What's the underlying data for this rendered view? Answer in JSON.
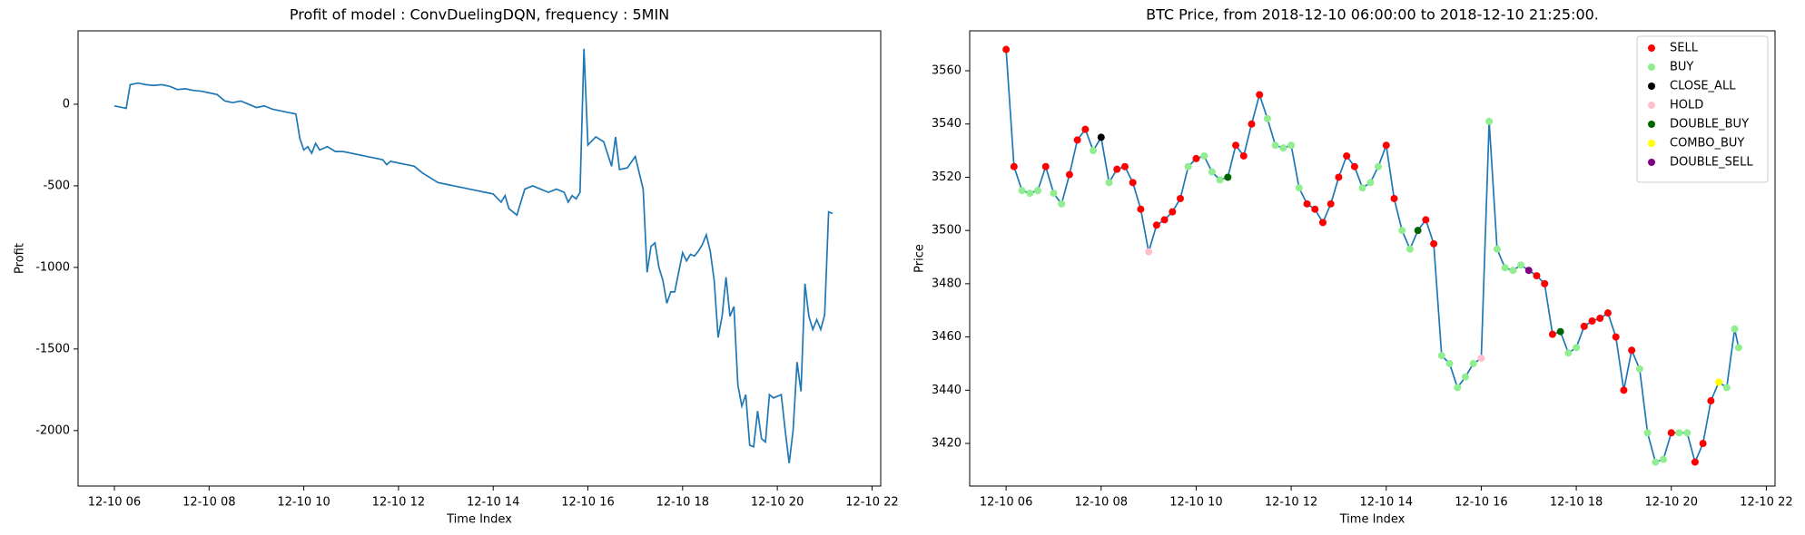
{
  "chart_data": [
    {
      "type": "line",
      "title": "Profit of model : ConvDuelingDQN, frequency : 5MIN",
      "x_label": "Time Index",
      "y_label": "Profit",
      "color": "#1f77b4",
      "x": [
        "2018-12-10 06:00",
        "2018-12-10 06:10",
        "2018-12-10 06:15",
        "2018-12-10 06:20",
        "2018-12-10 06:30",
        "2018-12-10 06:40",
        "2018-12-10 06:50",
        "2018-12-10 07:00",
        "2018-12-10 07:10",
        "2018-12-10 07:20",
        "2018-12-10 07:30",
        "2018-12-10 07:40",
        "2018-12-10 07:50",
        "2018-12-10 08:00",
        "2018-12-10 08:10",
        "2018-12-10 08:20",
        "2018-12-10 08:30",
        "2018-12-10 08:40",
        "2018-12-10 08:50",
        "2018-12-10 09:00",
        "2018-12-10 09:10",
        "2018-12-10 09:20",
        "2018-12-10 09:30",
        "2018-12-10 09:40",
        "2018-12-10 09:50",
        "2018-12-10 09:55",
        "2018-12-10 10:00",
        "2018-12-10 10:05",
        "2018-12-10 10:10",
        "2018-12-10 10:15",
        "2018-12-10 10:20",
        "2018-12-10 10:30",
        "2018-12-10 10:40",
        "2018-12-10 10:50",
        "2018-12-10 11:00",
        "2018-12-10 11:10",
        "2018-12-10 11:20",
        "2018-12-10 11:30",
        "2018-12-10 11:40",
        "2018-12-10 11:45",
        "2018-12-10 11:50",
        "2018-12-10 12:00",
        "2018-12-10 12:10",
        "2018-12-10 12:20",
        "2018-12-10 12:30",
        "2018-12-10 12:40",
        "2018-12-10 12:50",
        "2018-12-10 13:00",
        "2018-12-10 13:10",
        "2018-12-10 13:20",
        "2018-12-10 13:30",
        "2018-12-10 13:40",
        "2018-12-10 13:50",
        "2018-12-10 14:00",
        "2018-12-10 14:10",
        "2018-12-10 14:15",
        "2018-12-10 14:20",
        "2018-12-10 14:30",
        "2018-12-10 14:40",
        "2018-12-10 14:50",
        "2018-12-10 15:00",
        "2018-12-10 15:10",
        "2018-12-10 15:20",
        "2018-12-10 15:30",
        "2018-12-10 15:35",
        "2018-12-10 15:40",
        "2018-12-10 15:45",
        "2018-12-10 15:50",
        "2018-12-10 15:55",
        "2018-12-10 16:00",
        "2018-12-10 16:10",
        "2018-12-10 16:20",
        "2018-12-10 16:30",
        "2018-12-10 16:35",
        "2018-12-10 16:40",
        "2018-12-10 16:50",
        "2018-12-10 17:00",
        "2018-12-10 17:05",
        "2018-12-10 17:10",
        "2018-12-10 17:15",
        "2018-12-10 17:20",
        "2018-12-10 17:25",
        "2018-12-10 17:30",
        "2018-12-10 17:35",
        "2018-12-10 17:40",
        "2018-12-10 17:45",
        "2018-12-10 17:50",
        "2018-12-10 18:00",
        "2018-12-10 18:05",
        "2018-12-10 18:10",
        "2018-12-10 18:15",
        "2018-12-10 18:20",
        "2018-12-10 18:25",
        "2018-12-10 18:30",
        "2018-12-10 18:35",
        "2018-12-10 18:40",
        "2018-12-10 18:45",
        "2018-12-10 18:50",
        "2018-12-10 18:55",
        "2018-12-10 19:00",
        "2018-12-10 19:05",
        "2018-12-10 19:10",
        "2018-12-10 19:15",
        "2018-12-10 19:20",
        "2018-12-10 19:25",
        "2018-12-10 19:30",
        "2018-12-10 19:35",
        "2018-12-10 19:40",
        "2018-12-10 19:45",
        "2018-12-10 19:50",
        "2018-12-10 19:55",
        "2018-12-10 20:00",
        "2018-12-10 20:05",
        "2018-12-10 20:10",
        "2018-12-10 20:15",
        "2018-12-10 20:20",
        "2018-12-10 20:25",
        "2018-12-10 20:30",
        "2018-12-10 20:35",
        "2018-12-10 20:40",
        "2018-12-10 20:45",
        "2018-12-10 20:50",
        "2018-12-10 20:55",
        "2018-12-10 21:00",
        "2018-12-10 21:05",
        "2018-12-10 21:10"
      ],
      "values": [
        -10,
        -20,
        -25,
        120,
        130,
        120,
        115,
        120,
        110,
        90,
        95,
        85,
        80,
        70,
        60,
        20,
        10,
        20,
        0,
        -20,
        -10,
        -30,
        -40,
        -50,
        -60,
        -210,
        -280,
        -260,
        -300,
        -240,
        -280,
        -260,
        -290,
        -290,
        -300,
        -310,
        -320,
        -330,
        -340,
        -370,
        -350,
        -360,
        -370,
        -380,
        -420,
        -450,
        -480,
        -490,
        -500,
        -510,
        -520,
        -530,
        -540,
        -550,
        -600,
        -560,
        -640,
        -680,
        -520,
        -500,
        -520,
        -540,
        -520,
        -540,
        -600,
        -560,
        -580,
        -540,
        340,
        -250,
        -200,
        -230,
        -380,
        -200,
        -400,
        -390,
        -320,
        -420,
        -520,
        -1030,
        -870,
        -850,
        -1000,
        -1080,
        -1220,
        -1150,
        -1150,
        -910,
        -960,
        -920,
        -930,
        -900,
        -860,
        -800,
        -900,
        -1080,
        -1430,
        -1300,
        -1060,
        -1300,
        -1240,
        -1720,
        -1850,
        -1780,
        -2090,
        -2100,
        -1880,
        -2050,
        -2070,
        -1780,
        -1800,
        -1790,
        -1780,
        -2000,
        -2200,
        -2000,
        -1580,
        -1760,
        -1100,
        -1300,
        -1380,
        -1320,
        -1380,
        -1290,
        -660,
        -670
      ],
      "xlim": [
        "2018-12-10 05:14",
        "2018-12-10 22:11"
      ],
      "xticks": [
        {
          "value": "2018-12-10 06:00",
          "label": "12-10 06"
        },
        {
          "value": "2018-12-10 08:00",
          "label": "12-10 08"
        },
        {
          "value": "2018-12-10 10:00",
          "label": "12-10 10"
        },
        {
          "value": "2018-12-10 12:00",
          "label": "12-10 12"
        },
        {
          "value": "2018-12-10 14:00",
          "label": "12-10 14"
        },
        {
          "value": "2018-12-10 16:00",
          "label": "12-10 16"
        },
        {
          "value": "2018-12-10 18:00",
          "label": "12-10 18"
        },
        {
          "value": "2018-12-10 20:00",
          "label": "12-10 20"
        },
        {
          "value": "2018-12-10 22:00",
          "label": "12-10 22"
        }
      ],
      "ylim": [
        -2340,
        450
      ],
      "yticks": [
        -2000,
        -1500,
        -1000,
        -500,
        0
      ]
    },
    {
      "type": "line",
      "title": "BTC Price, from 2018-12-10 06:00:00 to 2018-12-10 21:25:00.",
      "x_label": "Time Index",
      "y_label": "Price",
      "color": "#1f77b4",
      "legend": "upper right",
      "x": [
        "2018-12-10 06:00",
        "2018-12-10 06:10",
        "2018-12-10 06:20",
        "2018-12-10 06:30",
        "2018-12-10 06:40",
        "2018-12-10 06:50",
        "2018-12-10 07:00",
        "2018-12-10 07:10",
        "2018-12-10 07:20",
        "2018-12-10 07:30",
        "2018-12-10 07:40",
        "2018-12-10 07:50",
        "2018-12-10 08:00",
        "2018-12-10 08:10",
        "2018-12-10 08:20",
        "2018-12-10 08:30",
        "2018-12-10 08:40",
        "2018-12-10 08:50",
        "2018-12-10 09:00",
        "2018-12-10 09:10",
        "2018-12-10 09:20",
        "2018-12-10 09:30",
        "2018-12-10 09:40",
        "2018-12-10 09:50",
        "2018-12-10 10:00",
        "2018-12-10 10:10",
        "2018-12-10 10:20",
        "2018-12-10 10:30",
        "2018-12-10 10:40",
        "2018-12-10 10:50",
        "2018-12-10 11:00",
        "2018-12-10 11:10",
        "2018-12-10 11:20",
        "2018-12-10 11:30",
        "2018-12-10 11:40",
        "2018-12-10 11:50",
        "2018-12-10 12:00",
        "2018-12-10 12:10",
        "2018-12-10 12:20",
        "2018-12-10 12:30",
        "2018-12-10 12:40",
        "2018-12-10 12:50",
        "2018-12-10 13:00",
        "2018-12-10 13:10",
        "2018-12-10 13:20",
        "2018-12-10 13:30",
        "2018-12-10 13:40",
        "2018-12-10 13:50",
        "2018-12-10 14:00",
        "2018-12-10 14:10",
        "2018-12-10 14:20",
        "2018-12-10 14:30",
        "2018-12-10 14:40",
        "2018-12-10 14:50",
        "2018-12-10 15:00",
        "2018-12-10 15:10",
        "2018-12-10 15:20",
        "2018-12-10 15:30",
        "2018-12-10 15:40",
        "2018-12-10 15:50",
        "2018-12-10 16:00",
        "2018-12-10 16:10",
        "2018-12-10 16:20",
        "2018-12-10 16:30",
        "2018-12-10 16:40",
        "2018-12-10 16:50",
        "2018-12-10 17:00",
        "2018-12-10 17:10",
        "2018-12-10 17:20",
        "2018-12-10 17:30",
        "2018-12-10 17:40",
        "2018-12-10 17:50",
        "2018-12-10 18:00",
        "2018-12-10 18:10",
        "2018-12-10 18:20",
        "2018-12-10 18:30",
        "2018-12-10 18:40",
        "2018-12-10 18:50",
        "2018-12-10 19:00",
        "2018-12-10 19:10",
        "2018-12-10 19:20",
        "2018-12-10 19:30",
        "2018-12-10 19:40",
        "2018-12-10 19:50",
        "2018-12-10 20:00",
        "2018-12-10 20:10",
        "2018-12-10 20:20",
        "2018-12-10 20:30",
        "2018-12-10 20:40",
        "2018-12-10 20:50",
        "2018-12-10 21:00",
        "2018-12-10 21:10",
        "2018-12-10 21:20",
        "2018-12-10 21:25"
      ],
      "values": [
        3568,
        3524,
        3515,
        3514,
        3515,
        3524,
        3514,
        3510,
        3521,
        3534,
        3538,
        3530,
        3535,
        3518,
        3523,
        3524,
        3518,
        3508,
        3492,
        3502,
        3504,
        3507,
        3512,
        3524,
        3527,
        3528,
        3522,
        3519,
        3520,
        3532,
        3528,
        3540,
        3551,
        3542,
        3532,
        3531,
        3532,
        3516,
        3510,
        3508,
        3503,
        3510,
        3520,
        3528,
        3524,
        3516,
        3518,
        3524,
        3532,
        3512,
        3500,
        3493,
        3500,
        3504,
        3495,
        3453,
        3450,
        3441,
        3445,
        3450,
        3452,
        3541,
        3493,
        3486,
        3485,
        3487,
        3485,
        3483,
        3480,
        3461,
        3462,
        3454,
        3456,
        3464,
        3466,
        3467,
        3469,
        3460,
        3440,
        3455,
        3448,
        3424,
        3413,
        3414,
        3424,
        3424,
        3424,
        3413,
        3420,
        3436,
        3443,
        3441,
        3463,
        3456
      ],
      "series": [
        {
          "name": "SELL",
          "color": "#ff0000",
          "x": [
            "2018-12-10 06:00",
            "2018-12-10 06:10",
            "2018-12-10 06:50",
            "2018-12-10 07:20",
            "2018-12-10 07:30",
            "2018-12-10 07:40",
            "2018-12-10 08:20",
            "2018-12-10 08:30",
            "2018-12-10 08:40",
            "2018-12-10 08:50",
            "2018-12-10 09:10",
            "2018-12-10 09:20",
            "2018-12-10 09:30",
            "2018-12-10 09:40",
            "2018-12-10 10:00",
            "2018-12-10 10:50",
            "2018-12-10 11:00",
            "2018-12-10 11:10",
            "2018-12-10 11:20",
            "2018-12-10 12:20",
            "2018-12-10 12:30",
            "2018-12-10 12:40",
            "2018-12-10 12:50",
            "2018-12-10 13:00",
            "2018-12-10 13:10",
            "2018-12-10 13:20",
            "2018-12-10 14:00",
            "2018-12-10 14:10",
            "2018-12-10 14:50",
            "2018-12-10 15:00",
            "2018-12-10 17:10",
            "2018-12-10 17:20",
            "2018-12-10 17:30",
            "2018-12-10 18:10",
            "2018-12-10 18:20",
            "2018-12-10 18:30",
            "2018-12-10 18:40",
            "2018-12-10 18:50",
            "2018-12-10 19:00",
            "2018-12-10 19:10",
            "2018-12-10 20:00",
            "2018-12-10 20:30",
            "2018-12-10 20:40",
            "2018-12-10 20:50"
          ],
          "values": [
            3568,
            3524,
            3524,
            3521,
            3534,
            3538,
            3523,
            3524,
            3518,
            3508,
            3502,
            3504,
            3507,
            3512,
            3527,
            3532,
            3528,
            3540,
            3551,
            3510,
            3508,
            3503,
            3510,
            3520,
            3528,
            3524,
            3532,
            3512,
            3504,
            3495,
            3483,
            3480,
            3461,
            3464,
            3466,
            3467,
            3469,
            3460,
            3440,
            3455,
            3424,
            3413,
            3420,
            3436
          ]
        },
        {
          "name": "BUY",
          "color": "#90ee90",
          "x": [
            "2018-12-10 06:20",
            "2018-12-10 06:30",
            "2018-12-10 06:40",
            "2018-12-10 07:00",
            "2018-12-10 07:10",
            "2018-12-10 07:50",
            "2018-12-10 08:10",
            "2018-12-10 09:50",
            "2018-12-10 10:10",
            "2018-12-10 10:20",
            "2018-12-10 10:30",
            "2018-12-10 11:30",
            "2018-12-10 11:40",
            "2018-12-10 11:50",
            "2018-12-10 12:00",
            "2018-12-10 12:10",
            "2018-12-10 13:30",
            "2018-12-10 13:40",
            "2018-12-10 13:50",
            "2018-12-10 14:20",
            "2018-12-10 14:30",
            "2018-12-10 15:10",
            "2018-12-10 15:20",
            "2018-12-10 15:30",
            "2018-12-10 15:40",
            "2018-12-10 15:50",
            "2018-12-10 16:10",
            "2018-12-10 16:20",
            "2018-12-10 16:30",
            "2018-12-10 16:40",
            "2018-12-10 16:50",
            "2018-12-10 17:50",
            "2018-12-10 18:00",
            "2018-12-10 19:20",
            "2018-12-10 19:30",
            "2018-12-10 19:40",
            "2018-12-10 19:50",
            "2018-12-10 20:10",
            "2018-12-10 20:20",
            "2018-12-10 21:10",
            "2018-12-10 21:20",
            "2018-12-10 21:25"
          ],
          "values": [
            3515,
            3514,
            3515,
            3514,
            3510,
            3530,
            3518,
            3524,
            3528,
            3522,
            3519,
            3542,
            3532,
            3531,
            3532,
            3516,
            3516,
            3518,
            3524,
            3500,
            3493,
            3453,
            3450,
            3441,
            3445,
            3450,
            3541,
            3493,
            3486,
            3485,
            3487,
            3454,
            3456,
            3448,
            3424,
            3413,
            3414,
            3424,
            3424,
            3441,
            3463,
            3456
          ]
        },
        {
          "name": "CLOSE_ALL",
          "color": "#000000",
          "x": [
            "2018-12-10 08:00"
          ],
          "values": [
            3535
          ]
        },
        {
          "name": "HOLD",
          "color": "#ffc0cb",
          "x": [
            "2018-12-10 09:00",
            "2018-12-10 16:00"
          ],
          "values": [
            3492,
            3452
          ]
        },
        {
          "name": "DOUBLE_BUY",
          "color": "#006400",
          "x": [
            "2018-12-10 10:40",
            "2018-12-10 14:40",
            "2018-12-10 17:40"
          ],
          "values": [
            3520,
            3500,
            3462
          ]
        },
        {
          "name": "COMBO_BUY",
          "color": "#ffff00",
          "x": [
            "2018-12-10 21:00"
          ],
          "values": [
            3443
          ]
        },
        {
          "name": "DOUBLE_SELL",
          "color": "#800080",
          "x": [
            "2018-12-10 17:00"
          ],
          "values": [
            3485
          ]
        }
      ],
      "xlim": [
        "2018-12-10 05:14",
        "2018-12-10 22:11"
      ],
      "xticks": [
        {
          "value": "2018-12-10 06:00",
          "label": "12-10 06"
        },
        {
          "value": "2018-12-10 08:00",
          "label": "12-10 08"
        },
        {
          "value": "2018-12-10 10:00",
          "label": "12-10 10"
        },
        {
          "value": "2018-12-10 12:00",
          "label": "12-10 12"
        },
        {
          "value": "2018-12-10 14:00",
          "label": "12-10 14"
        },
        {
          "value": "2018-12-10 16:00",
          "label": "12-10 16"
        },
        {
          "value": "2018-12-10 18:00",
          "label": "12-10 18"
        },
        {
          "value": "2018-12-10 20:00",
          "label": "12-10 20"
        },
        {
          "value": "2018-12-10 22:00",
          "label": "12-10 22"
        }
      ],
      "ylim": [
        3404,
        3575
      ],
      "yticks": [
        3420,
        3440,
        3460,
        3480,
        3500,
        3520,
        3540,
        3560
      ]
    }
  ]
}
